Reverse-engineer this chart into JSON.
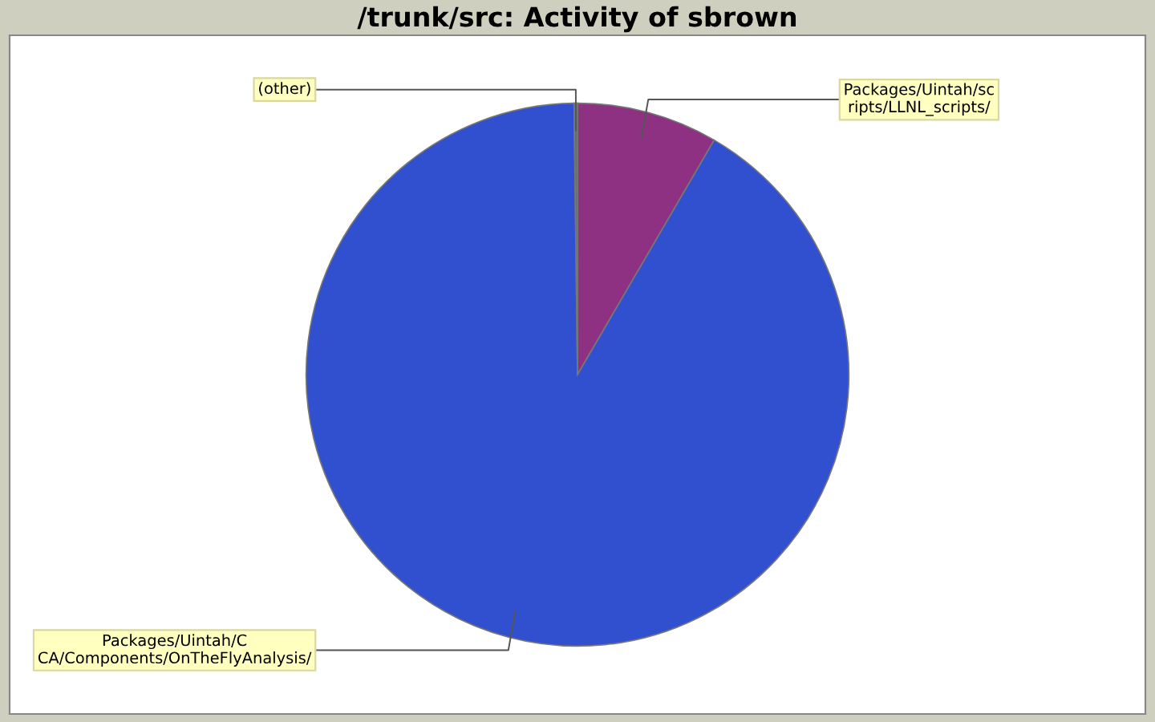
{
  "chart_data": {
    "type": "pie",
    "title": "/trunk/src: Activity of sbrown",
    "categories": [
      "Packages/Uintah/sc\nripts/LLNL_scripts/",
      "Packages/Uintah/C\nCA/Components/OnTheFlyAnalysis/",
      "(other)"
    ],
    "values": [
      8.4,
      91.4,
      0.2
    ],
    "colors": [
      "#8f3183",
      "#3150cf",
      "#6b6b6b"
    ],
    "legend": false
  }
}
